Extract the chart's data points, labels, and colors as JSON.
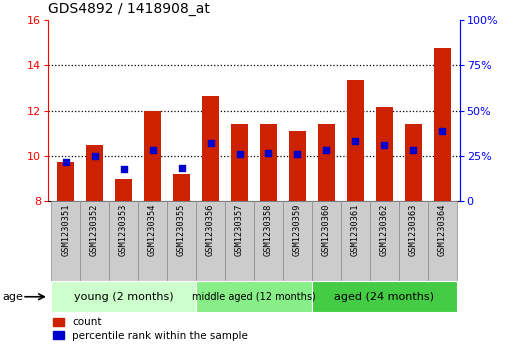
{
  "title": "GDS4892 / 1418908_at",
  "samples": [
    "GSM1230351",
    "GSM1230352",
    "GSM1230353",
    "GSM1230354",
    "GSM1230355",
    "GSM1230356",
    "GSM1230357",
    "GSM1230358",
    "GSM1230359",
    "GSM1230360",
    "GSM1230361",
    "GSM1230362",
    "GSM1230363",
    "GSM1230364"
  ],
  "count_values": [
    9.75,
    10.5,
    9.0,
    12.0,
    9.2,
    12.65,
    11.4,
    11.4,
    11.1,
    11.4,
    13.35,
    12.15,
    11.4,
    14.75
  ],
  "percentile_positions": [
    9.75,
    10.0,
    9.42,
    10.28,
    9.48,
    10.58,
    10.1,
    10.12,
    10.1,
    10.28,
    10.68,
    10.5,
    10.28,
    11.1
  ],
  "ylim_left": [
    8,
    16
  ],
  "ylim_right": [
    0,
    100
  ],
  "yticks_left": [
    8,
    10,
    12,
    14,
    16
  ],
  "yticks_right": [
    0,
    25,
    50,
    75,
    100
  ],
  "bar_color": "#cc2200",
  "dot_color": "#0000cc",
  "group_labels": [
    "young (2 months)",
    "middle aged (12 months)",
    "aged (24 months)"
  ],
  "group_sample_counts": [
    5,
    4,
    5
  ],
  "group_colors": [
    "#ccffcc",
    "#88ee88",
    "#44cc44"
  ],
  "age_label": "age",
  "legend_count": "count",
  "legend_pct": "percentile rank within the sample",
  "bar_width": 0.6,
  "ybase": 8.0,
  "grid_lines": [
    10,
    12,
    14
  ],
  "sample_box_color": "#cccccc",
  "sample_box_edge": "#888888"
}
